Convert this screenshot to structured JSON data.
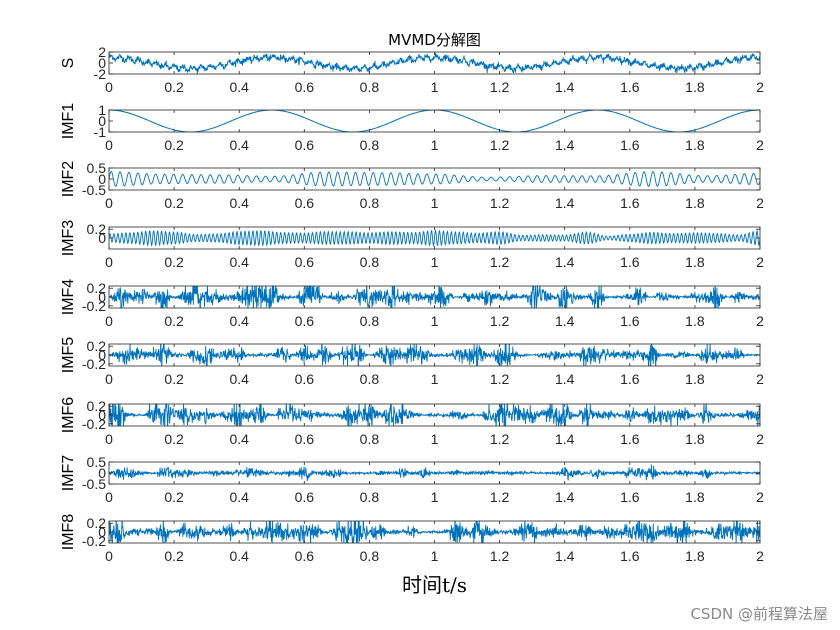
{
  "chart_data": {
    "type": "line",
    "title": "MVMD分解图",
    "xlabel": "时间t/s",
    "xlim": [
      0,
      2
    ],
    "x_ticks": [
      "0",
      "0.2",
      "0.4",
      "0.6",
      "0.8",
      "1",
      "1.2",
      "1.4",
      "1.6",
      "1.8",
      "2"
    ],
    "line_color": "#0072BD",
    "grid": false,
    "panels": [
      {
        "ylabel": "S",
        "ylim": [
          -2,
          2
        ],
        "yticks": [
          "2",
          "0",
          "-2"
        ],
        "ytick_values": [
          2,
          0,
          -2
        ],
        "series": "signal: 1.0*cos(2*pi*2*t) plus noise, amplitude ~1.5"
      },
      {
        "ylabel": "IMF1",
        "ylim": [
          -1,
          1
        ],
        "yticks": [
          "1",
          "0",
          "-1"
        ],
        "ytick_values": [
          1,
          0,
          -1
        ],
        "series": "cos(2*pi*2*t), amplitude 1"
      },
      {
        "ylabel": "IMF2",
        "ylim": [
          -0.5,
          0.5
        ],
        "yticks": [
          "0.5",
          "0",
          "-0.5"
        ],
        "ytick_values": [
          0.5,
          0,
          -0.5
        ],
        "series": "oscillation ~36 Hz, amplitude ~0.35"
      },
      {
        "ylabel": "IMF3",
        "ylim": [
          -0.25,
          0.25
        ],
        "yticks": [
          "0.2",
          "0"
        ],
        "ytick_values": [
          0.2,
          0
        ],
        "series": "oscillation ~80 Hz, amplitude ~0.15"
      },
      {
        "ylabel": "IMF4",
        "ylim": [
          -0.25,
          0.25
        ],
        "yticks": [
          "0.2",
          "0",
          "-0.2"
        ],
        "ytick_values": [
          0.2,
          0,
          -0.2
        ],
        "series": "noise-like, amplitude ~0.15"
      },
      {
        "ylabel": "IMF5",
        "ylim": [
          -0.25,
          0.25
        ],
        "yticks": [
          "0.2",
          "0",
          "-0.2"
        ],
        "ytick_values": [
          0.2,
          0,
          -0.2
        ],
        "series": "noise-like, amplitude ~0.12"
      },
      {
        "ylabel": "IMF6",
        "ylim": [
          -0.25,
          0.25
        ],
        "yticks": [
          "0.2",
          "0",
          "-0.2"
        ],
        "ytick_values": [
          0.2,
          0,
          -0.2
        ],
        "series": "noise-like, amplitude ~0.12"
      },
      {
        "ylabel": "IMF7",
        "ylim": [
          -0.5,
          0.5
        ],
        "yticks": [
          "0.5",
          "0",
          "-0.5"
        ],
        "ytick_values": [
          0.5,
          0,
          -0.5
        ],
        "series": "noise-like, amplitude ~0.1"
      },
      {
        "ylabel": "IMF8",
        "ylim": [
          -0.25,
          0.25
        ],
        "yticks": [
          "0.2",
          "0",
          "-0.2"
        ],
        "ytick_values": [
          0.2,
          0,
          -0.2
        ],
        "series": "noise-like, amplitude ~0.15"
      }
    ]
  },
  "watermark": "CSDN @前程算法屋"
}
